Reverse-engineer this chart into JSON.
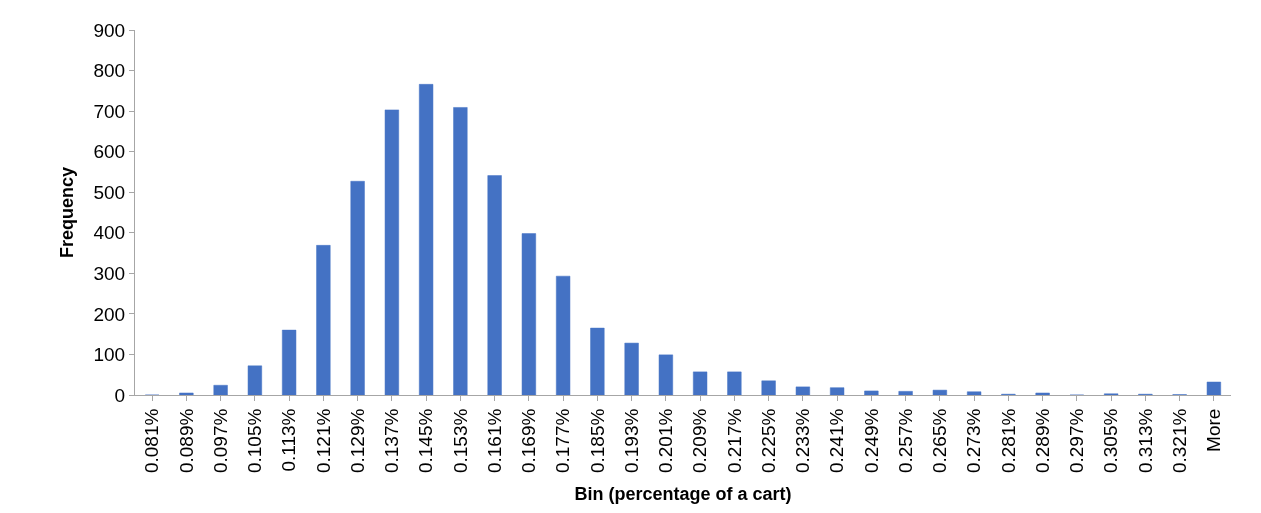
{
  "chart_data": {
    "type": "bar",
    "xlabel": "Bin (percentage of a cart)",
    "ylabel": "Frequency",
    "categories": [
      "0.081%",
      "0.089%",
      "0.097%",
      "0.105%",
      "0.113%",
      "0.121%",
      "0.129%",
      "0.137%",
      "0.145%",
      "0.153%",
      "0.161%",
      "0.169%",
      "0.177%",
      "0.185%",
      "0.193%",
      "0.201%",
      "0.209%",
      "0.217%",
      "0.225%",
      "0.233%",
      "0.241%",
      "0.249%",
      "0.257%",
      "0.265%",
      "0.273%",
      "0.281%",
      "0.289%",
      "0.297%",
      "0.305%",
      "0.313%",
      "0.321%",
      "More"
    ],
    "values": [
      0,
      5,
      24,
      72,
      160,
      369,
      527,
      703,
      766,
      709,
      541,
      398,
      293,
      165,
      128,
      99,
      57,
      57,
      35,
      20,
      18,
      10,
      9,
      12,
      8,
      2,
      5,
      0,
      3,
      2,
      1,
      32
    ],
    "color": "#4472c4",
    "ylim": [
      0,
      900
    ],
    "yticks": [
      0,
      100,
      200,
      300,
      400,
      500,
      600,
      700,
      800,
      900
    ]
  }
}
